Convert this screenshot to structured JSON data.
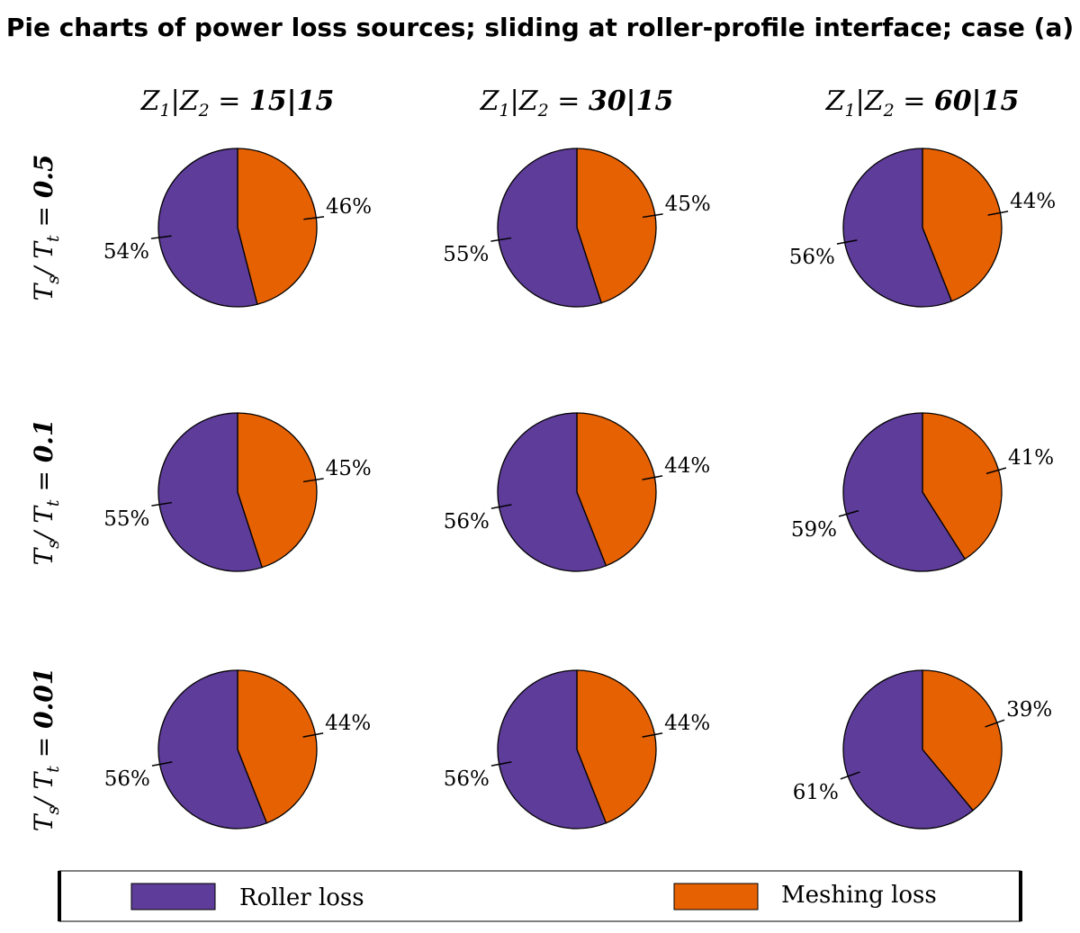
{
  "title": "Pie charts of power loss sources; sliding at roller-profile interface; case (a)",
  "columns": [
    {
      "var": "Z",
      "sub1": "1",
      "sep": "|",
      "sub2": "2",
      "eq": " = ",
      "value": "15|15"
    },
    {
      "var": "Z",
      "sub1": "1",
      "sep": "|",
      "sub2": "2",
      "eq": " = ",
      "value": "30|15"
    },
    {
      "var": "Z",
      "sub1": "1",
      "sep": "|",
      "sub2": "2",
      "eq": " = ",
      "value": "60|15"
    }
  ],
  "rows": [
    {
      "num": "T",
      "num_sub": "s",
      "sep": "/ ",
      "den": "T",
      "den_sub": "t",
      "eq": " = ",
      "value": "0.5"
    },
    {
      "num": "T",
      "num_sub": "s",
      "sep": "/ ",
      "den": "T",
      "den_sub": "t",
      "eq": " = ",
      "value": "0.1"
    },
    {
      "num": "T",
      "num_sub": "s",
      "sep": "/ ",
      "den": "T",
      "den_sub": "t",
      "eq": " = ",
      "value": "0.01"
    }
  ],
  "legend": {
    "placement": "bottom",
    "items": [
      {
        "label": "Roller loss",
        "color": "#5e3c99"
      },
      {
        "label": "Meshing loss",
        "color": "#e66101"
      }
    ]
  },
  "chart_data": [
    {
      "type": "pie",
      "categories": [
        "Meshing loss",
        "Roller loss"
      ],
      "values": [
        46,
        54
      ],
      "labels": [
        "46%",
        "54%"
      ],
      "colors": [
        "#e66101",
        "#5e3c99"
      ]
    },
    {
      "type": "pie",
      "categories": [
        "Meshing loss",
        "Roller loss"
      ],
      "values": [
        45,
        55
      ],
      "labels": [
        "45%",
        "55%"
      ],
      "colors": [
        "#e66101",
        "#5e3c99"
      ]
    },
    {
      "type": "pie",
      "categories": [
        "Meshing loss",
        "Roller loss"
      ],
      "values": [
        44,
        56
      ],
      "labels": [
        "44%",
        "56%"
      ],
      "colors": [
        "#e66101",
        "#5e3c99"
      ]
    },
    {
      "type": "pie",
      "categories": [
        "Meshing loss",
        "Roller loss"
      ],
      "values": [
        45,
        55
      ],
      "labels": [
        "45%",
        "55%"
      ],
      "colors": [
        "#e66101",
        "#5e3c99"
      ]
    },
    {
      "type": "pie",
      "categories": [
        "Meshing loss",
        "Roller loss"
      ],
      "values": [
        44,
        56
      ],
      "labels": [
        "44%",
        "56%"
      ],
      "colors": [
        "#e66101",
        "#5e3c99"
      ]
    },
    {
      "type": "pie",
      "categories": [
        "Meshing loss",
        "Roller loss"
      ],
      "values": [
        41,
        59
      ],
      "labels": [
        "41%",
        "59%"
      ],
      "colors": [
        "#e66101",
        "#5e3c99"
      ]
    },
    {
      "type": "pie",
      "categories": [
        "Meshing loss",
        "Roller loss"
      ],
      "values": [
        44,
        56
      ],
      "labels": [
        "44%",
        "56%"
      ],
      "colors": [
        "#e66101",
        "#5e3c99"
      ]
    },
    {
      "type": "pie",
      "categories": [
        "Meshing loss",
        "Roller loss"
      ],
      "values": [
        44,
        56
      ],
      "labels": [
        "44%",
        "56%"
      ],
      "colors": [
        "#e66101",
        "#5e3c99"
      ]
    },
    {
      "type": "pie",
      "categories": [
        "Meshing loss",
        "Roller loss"
      ],
      "values": [
        39,
        61
      ],
      "labels": [
        "39%",
        "61%"
      ],
      "colors": [
        "#e66101",
        "#5e3c99"
      ]
    }
  ]
}
